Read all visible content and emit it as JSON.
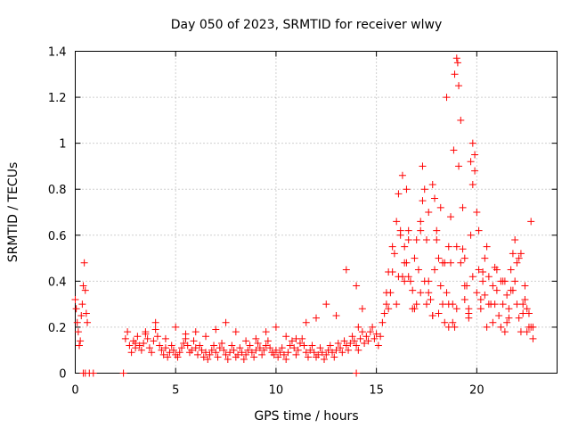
{
  "chart_data": {
    "type": "scatter",
    "title": "Day 050 of 2023, SRMTID for receiver wlwy",
    "xlabel": "GPS time / hours",
    "ylabel": "SRMTID / TECUs",
    "xlim": [
      0,
      24
    ],
    "ylim": [
      0,
      1.4
    ],
    "xticks": [
      0,
      5,
      10,
      15,
      20
    ],
    "xtick_labels": [
      "0",
      "5",
      "10",
      "15",
      "20"
    ],
    "yticks": [
      0,
      0.2,
      0.4,
      0.6,
      0.8,
      1.0,
      1.2,
      1.4
    ],
    "ytick_labels": [
      "0",
      "0.2",
      "0.4",
      "0.6",
      "0.8",
      "1",
      "1.2",
      "1.4"
    ],
    "grid": true,
    "marker": "+",
    "color": "#ff0000",
    "series": [
      {
        "name": "SRMTID",
        "x": [
          0.0,
          0.05,
          0.1,
          0.15,
          0.2,
          0.25,
          0.3,
          0.35,
          0.4,
          0.45,
          0.5,
          0.55,
          0.6,
          0.4,
          0.5,
          0.7,
          0.9,
          2.4,
          2.5,
          2.6,
          2.7,
          2.8,
          2.9,
          3.0,
          3.1,
          3.2,
          3.3,
          3.4,
          3.5,
          3.6,
          3.7,
          3.8,
          3.9,
          4.0,
          4.1,
          4.2,
          4.3,
          4.4,
          4.5,
          4.6,
          4.7,
          4.8,
          4.9,
          5.0,
          5.1,
          5.2,
          5.3,
          5.4,
          5.5,
          5.6,
          5.7,
          5.8,
          5.9,
          6.0,
          6.1,
          6.2,
          6.3,
          6.4,
          6.5,
          6.6,
          6.7,
          6.8,
          6.9,
          7.0,
          7.1,
          7.2,
          7.3,
          7.4,
          7.5,
          7.6,
          7.7,
          7.8,
          7.9,
          8.0,
          8.1,
          8.2,
          8.3,
          8.4,
          8.5,
          8.6,
          8.7,
          8.8,
          8.9,
          9.0,
          9.1,
          9.2,
          9.3,
          9.4,
          9.5,
          9.6,
          9.7,
          9.8,
          9.9,
          10.0,
          10.1,
          10.2,
          10.3,
          10.4,
          10.5,
          10.6,
          10.7,
          10.8,
          10.9,
          11.0,
          11.1,
          11.2,
          11.3,
          11.4,
          11.5,
          11.6,
          11.7,
          11.8,
          11.9,
          12.0,
          12.1,
          12.2,
          12.3,
          12.4,
          12.5,
          12.6,
          12.7,
          12.8,
          12.9,
          13.0,
          13.1,
          13.2,
          13.3,
          13.4,
          13.5,
          13.6,
          13.7,
          13.8,
          13.9,
          14.0,
          14.1,
          14.2,
          14.3,
          14.4,
          14.5,
          14.6,
          14.7,
          14.8,
          14.9,
          15.0,
          15.1,
          15.2,
          15.3,
          15.4,
          15.5,
          15.6,
          15.7,
          15.8,
          15.9,
          16.0,
          16.1,
          16.2,
          16.3,
          16.4,
          16.5,
          16.6,
          16.7,
          16.8,
          16.9,
          17.0,
          17.1,
          17.2,
          17.3,
          17.4,
          17.5,
          17.6,
          17.7,
          17.8,
          17.9,
          18.0,
          18.1,
          18.2,
          18.3,
          18.4,
          18.5,
          18.6,
          18.7,
          18.8,
          18.9,
          19.0,
          19.1,
          19.2,
          19.3,
          19.4,
          19.5,
          19.6,
          19.7,
          19.8,
          19.9,
          20.0,
          20.1,
          20.2,
          20.3,
          20.4,
          20.5,
          20.6,
          20.7,
          20.8,
          20.9,
          21.0,
          21.1,
          21.2,
          21.3,
          21.4,
          21.5,
          21.6,
          21.7,
          21.8,
          21.9,
          22.0,
          22.1,
          22.2,
          22.3,
          22.4,
          22.5,
          22.6,
          22.7,
          22.8,
          3.0,
          3.5,
          4.0,
          4.5,
          5.0,
          5.5,
          6.0,
          6.5,
          7.0,
          7.5,
          8.0,
          8.5,
          9.0,
          9.5,
          10.0,
          10.5,
          11.0,
          11.5,
          12.0,
          12.5,
          13.0,
          13.5,
          14.0,
          15.8,
          16.0,
          16.2,
          16.4,
          16.6,
          16.8,
          17.0,
          17.2,
          17.4,
          17.6,
          17.8,
          18.0,
          18.2,
          18.4,
          18.6,
          18.8,
          19.0,
          19.2,
          19.4,
          19.6,
          19.8,
          20.0,
          20.2,
          20.4,
          20.6,
          20.8,
          21.0,
          21.2,
          21.4,
          21.6,
          21.8,
          22.0,
          22.2,
          22.4,
          22.6,
          22.8,
          16.3,
          16.5,
          17.3,
          17.6,
          17.8,
          18.5,
          18.9,
          19.0,
          19.05,
          19.1,
          18.85,
          19.7,
          19.8,
          19.9,
          20.1,
          16.6,
          17.9,
          18.7,
          19.3,
          21.9,
          22.7,
          14.0,
          14.1,
          14.3,
          15.5,
          15.6,
          16.1,
          16.4,
          16.9,
          17.2,
          17.5,
          18.1,
          18.3,
          18.6,
          19.4,
          19.6,
          20.3,
          20.5,
          20.9,
          21.3,
          21.5,
          21.7,
          22.1,
          22.3,
          22.5
        ],
        "y": [
          0.32,
          0.28,
          0.22,
          0.18,
          0.12,
          0.14,
          0.25,
          0.3,
          0.38,
          0.48,
          0.36,
          0.26,
          0.22,
          0.0,
          0.0,
          0.0,
          0.0,
          0.0,
          0.15,
          0.18,
          0.12,
          0.09,
          0.14,
          0.11,
          0.16,
          0.12,
          0.1,
          0.13,
          0.17,
          0.15,
          0.11,
          0.09,
          0.14,
          0.19,
          0.16,
          0.12,
          0.1,
          0.08,
          0.11,
          0.07,
          0.09,
          0.12,
          0.1,
          0.08,
          0.07,
          0.09,
          0.11,
          0.13,
          0.15,
          0.12,
          0.09,
          0.1,
          0.14,
          0.11,
          0.08,
          0.12,
          0.1,
          0.07,
          0.09,
          0.06,
          0.08,
          0.1,
          0.12,
          0.09,
          0.07,
          0.11,
          0.13,
          0.1,
          0.08,
          0.06,
          0.09,
          0.12,
          0.1,
          0.07,
          0.08,
          0.11,
          0.09,
          0.06,
          0.08,
          0.1,
          0.12,
          0.09,
          0.07,
          0.1,
          0.13,
          0.11,
          0.08,
          0.1,
          0.12,
          0.14,
          0.11,
          0.09,
          0.08,
          0.1,
          0.07,
          0.09,
          0.11,
          0.08,
          0.06,
          0.09,
          0.12,
          0.14,
          0.11,
          0.08,
          0.1,
          0.13,
          0.15,
          0.12,
          0.09,
          0.07,
          0.1,
          0.12,
          0.09,
          0.07,
          0.08,
          0.11,
          0.09,
          0.06,
          0.08,
          0.1,
          0.12,
          0.09,
          0.07,
          0.1,
          0.13,
          0.11,
          0.09,
          0.14,
          0.12,
          0.1,
          0.13,
          0.16,
          0.14,
          0.12,
          0.1,
          0.15,
          0.18,
          0.13,
          0.16,
          0.14,
          0.18,
          0.2,
          0.15,
          0.17,
          0.12,
          0.16,
          0.22,
          0.26,
          0.3,
          0.28,
          0.35,
          0.44,
          0.52,
          0.66,
          0.78,
          0.6,
          0.42,
          0.55,
          0.48,
          0.62,
          0.4,
          0.36,
          0.5,
          0.3,
          0.45,
          0.62,
          0.75,
          0.8,
          0.58,
          0.4,
          0.32,
          0.25,
          0.45,
          0.58,
          0.5,
          0.38,
          0.3,
          0.22,
          0.35,
          0.55,
          0.48,
          0.3,
          0.2,
          0.28,
          0.9,
          1.1,
          0.72,
          0.5,
          0.38,
          0.28,
          0.6,
          0.82,
          0.95,
          0.7,
          0.45,
          0.32,
          0.4,
          0.5,
          0.55,
          0.42,
          0.3,
          0.38,
          0.46,
          0.36,
          0.25,
          0.2,
          0.3,
          0.4,
          0.34,
          0.28,
          0.45,
          0.52,
          0.4,
          0.3,
          0.24,
          0.18,
          0.26,
          0.32,
          0.18,
          0.2,
          0.2,
          0.15,
          0.13,
          0.18,
          0.22,
          0.15,
          0.2,
          0.17,
          0.18,
          0.16,
          0.19,
          0.22,
          0.18,
          0.14,
          0.15,
          0.18,
          0.2,
          0.16,
          0.15,
          0.22,
          0.24,
          0.3,
          0.25,
          0.45,
          0.38,
          0.55,
          0.3,
          0.62,
          0.48,
          0.42,
          0.28,
          0.58,
          0.66,
          0.4,
          0.35,
          0.25,
          0.62,
          0.72,
          0.48,
          0.3,
          0.22,
          0.55,
          0.48,
          0.38,
          0.26,
          0.42,
          0.35,
          0.28,
          0.34,
          0.3,
          0.22,
          0.45,
          0.4,
          0.18,
          0.24,
          0.36,
          0.48,
          0.52,
          0.38,
          0.26,
          0.2,
          0.86,
          0.8,
          0.9,
          0.7,
          0.82,
          1.2,
          1.3,
          1.37,
          1.35,
          1.25,
          0.97,
          0.92,
          1.0,
          0.88,
          0.62,
          0.58,
          0.76,
          0.68,
          0.54,
          0.58,
          0.66,
          0.0,
          0.2,
          0.28,
          0.35,
          0.44,
          0.42,
          0.4,
          0.28,
          0.35,
          0.3,
          0.26,
          0.48,
          0.2,
          0.32,
          0.24,
          0.44,
          0.2,
          0.3,
          0.4,
          0.22,
          0.36,
          0.5,
          0.3,
          0.28
        ]
      }
    ]
  }
}
